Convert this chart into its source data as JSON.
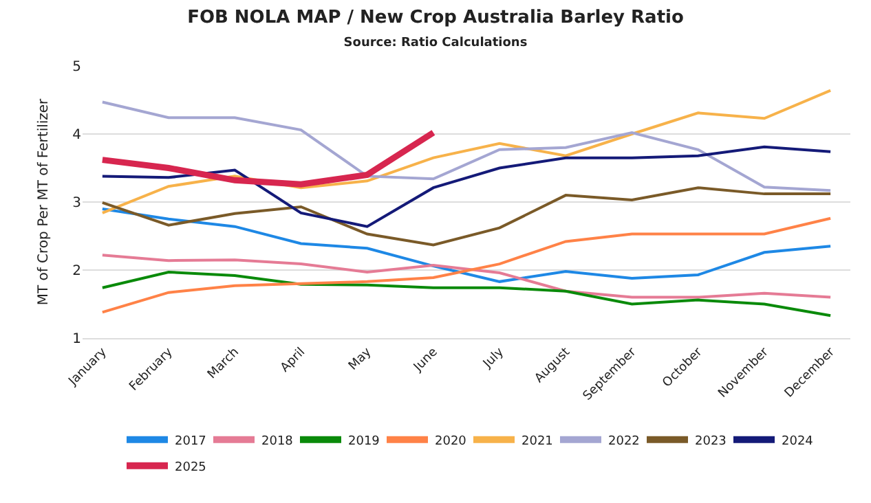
{
  "chart_data": {
    "type": "line",
    "title": "FOB NOLA MAP / New Crop Australia Barley Ratio",
    "subtitle": "Source: Ratio Calculations",
    "ylabel": "MT of Crop Per MT of Fertilizer",
    "categories": [
      "January",
      "February",
      "March",
      "April",
      "May",
      "June",
      "July",
      "August",
      "September",
      "October",
      "November",
      "December"
    ],
    "series": [
      {
        "name": "2017",
        "color": "#1e88e5",
        "values": [
          2.9,
          2.75,
          2.64,
          2.39,
          2.32,
          2.06,
          1.83,
          1.98,
          1.88,
          1.93,
          2.26,
          2.35
        ]
      },
      {
        "name": "2018",
        "color": "#e57b95",
        "values": [
          2.22,
          2.14,
          2.15,
          2.09,
          1.97,
          2.07,
          1.96,
          1.69,
          1.6,
          1.6,
          1.66,
          1.6
        ]
      },
      {
        "name": "2019",
        "color": "#0a8a0a",
        "values": [
          1.74,
          1.97,
          1.92,
          1.79,
          1.78,
          1.74,
          1.74,
          1.69,
          1.5,
          1.56,
          1.5,
          1.33
        ]
      },
      {
        "name": "2020",
        "color": "#ff8247",
        "values": [
          1.38,
          1.67,
          1.77,
          1.8,
          1.83,
          1.89,
          2.09,
          2.42,
          2.53,
          2.53,
          2.53,
          2.76
        ]
      },
      {
        "name": "2021",
        "color": "#f7b24a",
        "values": [
          2.84,
          3.23,
          3.38,
          3.21,
          3.31,
          3.65,
          3.86,
          3.68,
          4.0,
          4.31,
          4.23,
          4.64
        ]
      },
      {
        "name": "2022",
        "color": "#a4a6d2",
        "values": [
          4.47,
          4.24,
          4.24,
          4.06,
          3.38,
          3.34,
          3.77,
          3.8,
          4.02,
          3.77,
          3.22,
          3.17
        ]
      },
      {
        "name": "2023",
        "color": "#7a5a28",
        "values": [
          2.99,
          2.66,
          2.83,
          2.93,
          2.53,
          2.37,
          2.62,
          3.1,
          3.03,
          3.21,
          3.12,
          3.12
        ]
      },
      {
        "name": "2024",
        "color": "#141a78",
        "values": [
          3.38,
          3.36,
          3.47,
          2.84,
          2.64,
          3.21,
          3.5,
          3.65,
          3.65,
          3.68,
          3.81,
          3.74
        ]
      },
      {
        "name": "2025",
        "color": "#d7264f",
        "values": [
          3.62,
          3.5,
          3.32,
          3.26,
          3.4,
          4.02,
          null,
          null,
          null,
          null,
          null,
          null
        ]
      }
    ],
    "ylim": [
      1,
      5
    ],
    "yticks": [
      1,
      2,
      3,
      4,
      5
    ],
    "grid": "y",
    "legend": "bottom",
    "marker": "none",
    "line_style": "solid"
  }
}
